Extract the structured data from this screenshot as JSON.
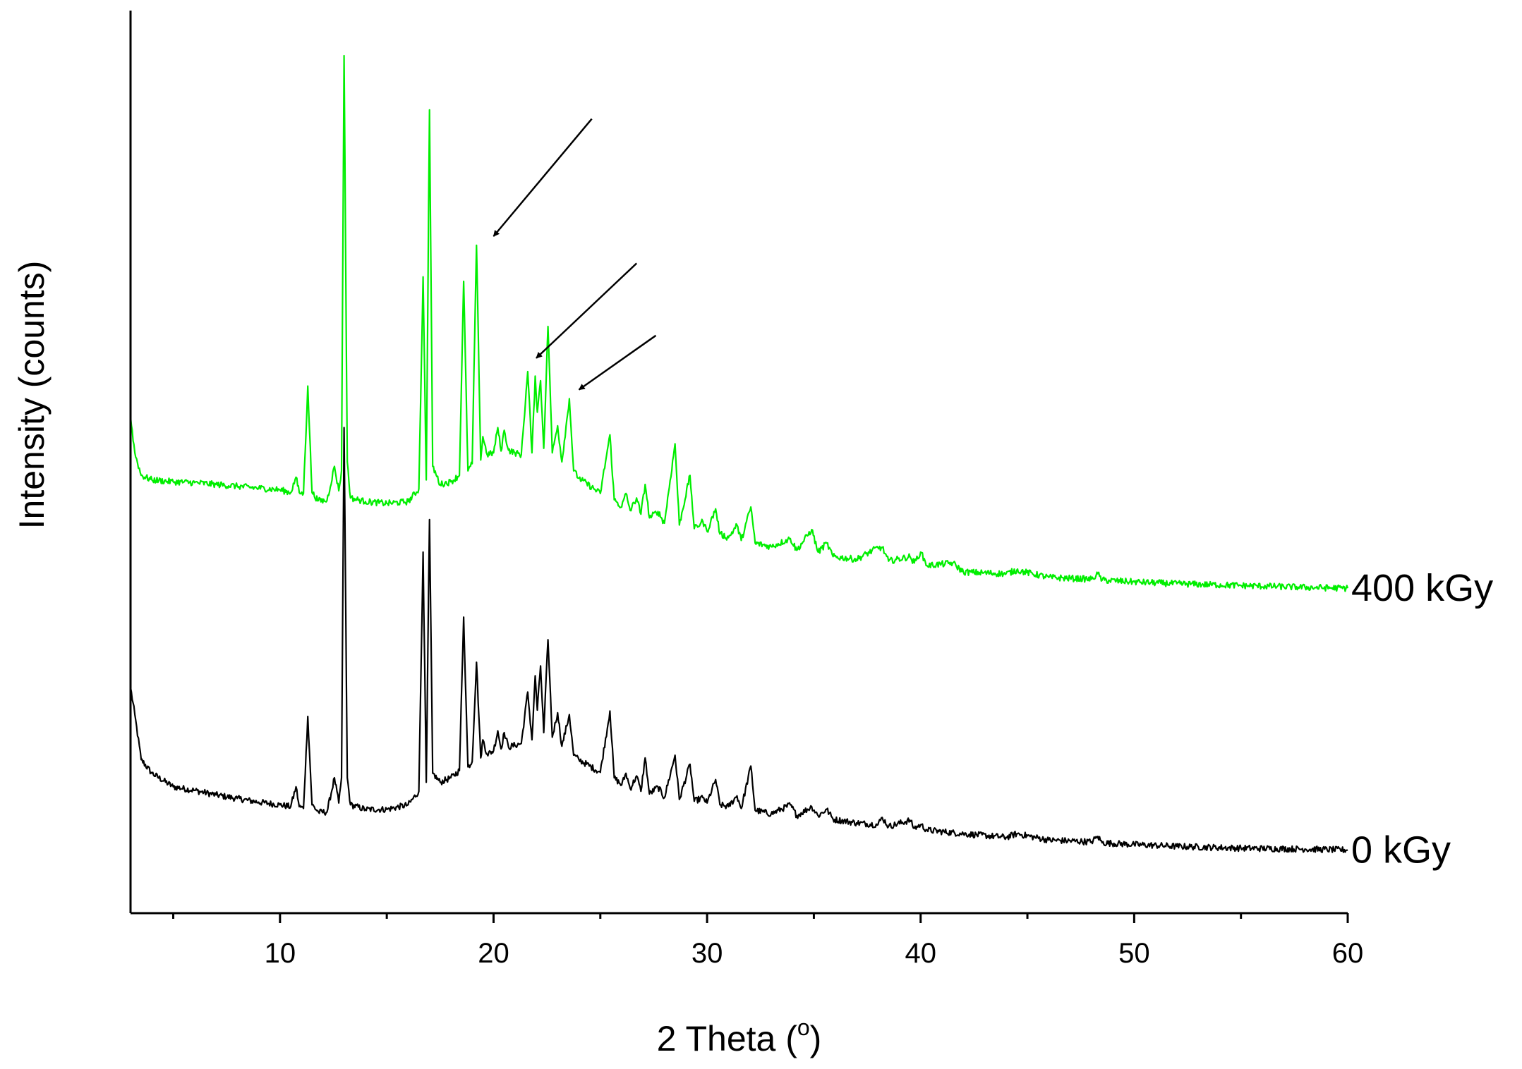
{
  "chart_data": {
    "type": "line",
    "xlabel": "2 Theta (",
    "xlabel_superscript": "o",
    "xlabel_suffix": ")",
    "ylabel": "Intensity (counts)",
    "xlim": [
      3,
      60
    ],
    "ylim": [
      0,
      100
    ],
    "x_major_ticks": [
      10,
      20,
      30,
      40,
      50,
      60
    ],
    "x_minor_ticks": [
      5,
      15,
      25,
      35,
      45,
      55
    ],
    "y_ticks_shown": false,
    "grid": false,
    "legend": "none",
    "series": [
      {
        "name": "0 kGy",
        "color": "#000000",
        "points": [
          [
            3.0,
            25.0
          ],
          [
            3.2,
            22.0
          ],
          [
            3.5,
            17.0
          ],
          [
            4,
            15.5
          ],
          [
            5,
            14.0
          ],
          [
            6,
            13.6
          ],
          [
            7,
            13.1
          ],
          [
            8,
            12.7
          ],
          [
            9,
            12.3
          ],
          [
            10,
            12.0
          ],
          [
            10.5,
            11.8
          ],
          [
            10.75,
            14.0
          ],
          [
            10.9,
            11.8
          ],
          [
            11.1,
            11.6
          ],
          [
            11.3,
            21.8
          ],
          [
            11.5,
            12.0
          ],
          [
            11.8,
            11.2
          ],
          [
            12.2,
            11.2
          ],
          [
            12.55,
            15.0
          ],
          [
            12.75,
            12.2
          ],
          [
            12.88,
            15.0
          ],
          [
            13.0,
            53.8
          ],
          [
            13.15,
            15.0
          ],
          [
            13.3,
            12.0
          ],
          [
            14,
            11.5
          ],
          [
            15,
            11.5
          ],
          [
            16,
            12.0
          ],
          [
            16.5,
            13.5
          ],
          [
            16.7,
            40.0
          ],
          [
            16.85,
            14.5
          ],
          [
            17.0,
            43.6
          ],
          [
            17.15,
            15.5
          ],
          [
            17.5,
            14.5
          ],
          [
            18,
            15.0
          ],
          [
            18.4,
            15.8
          ],
          [
            18.6,
            32.8
          ],
          [
            18.8,
            16.2
          ],
          [
            19.0,
            16.8
          ],
          [
            19.2,
            27.8
          ],
          [
            19.4,
            17.2
          ],
          [
            19.5,
            19.2
          ],
          [
            19.7,
            17.6
          ],
          [
            20.0,
            18.0
          ],
          [
            20.2,
            20.2
          ],
          [
            20.35,
            18.2
          ],
          [
            20.5,
            20.0
          ],
          [
            20.7,
            18.4
          ],
          [
            21.0,
            18.6
          ],
          [
            21.3,
            18.8
          ],
          [
            21.6,
            24.5
          ],
          [
            21.8,
            19.2
          ],
          [
            21.95,
            26.3
          ],
          [
            22.05,
            22.5
          ],
          [
            22.2,
            27.4
          ],
          [
            22.35,
            20.0
          ],
          [
            22.55,
            30.3
          ],
          [
            22.75,
            19.5
          ],
          [
            23.0,
            22.2
          ],
          [
            23.2,
            18.5
          ],
          [
            23.55,
            22.0
          ],
          [
            23.75,
            17.5
          ],
          [
            24.0,
            17.0
          ],
          [
            25.0,
            15.6
          ],
          [
            25.45,
            22.4
          ],
          [
            25.65,
            15.0
          ],
          [
            26.0,
            14.2
          ],
          [
            26.2,
            15.5
          ],
          [
            26.4,
            13.8
          ],
          [
            26.7,
            15.2
          ],
          [
            26.9,
            13.5
          ],
          [
            27.1,
            17.2
          ],
          [
            27.3,
            13.2
          ],
          [
            27.7,
            14.0
          ],
          [
            28.0,
            12.8
          ],
          [
            28.5,
            17.5
          ],
          [
            28.7,
            12.6
          ],
          [
            29.2,
            16.5
          ],
          [
            29.4,
            12.4
          ],
          [
            29.8,
            12.8
          ],
          [
            30.0,
            12.2
          ],
          [
            30.4,
            14.8
          ],
          [
            30.6,
            12.0
          ],
          [
            31.0,
            11.8
          ],
          [
            31.4,
            13.0
          ],
          [
            31.6,
            11.6
          ],
          [
            32.05,
            16.3
          ],
          [
            32.25,
            11.4
          ],
          [
            33.0,
            11.0
          ],
          [
            33.9,
            12.0
          ],
          [
            34.2,
            10.8
          ],
          [
            34.9,
            11.8
          ],
          [
            35.2,
            10.8
          ],
          [
            35.6,
            11.5
          ],
          [
            35.9,
            10.4
          ],
          [
            37.0,
            10.0
          ],
          [
            38.0,
            9.8
          ],
          [
            38.2,
            10.6
          ],
          [
            38.5,
            9.6
          ],
          [
            39.5,
            10.3
          ],
          [
            39.7,
            9.4
          ],
          [
            40.0,
            9.8
          ],
          [
            40.3,
            9.2
          ],
          [
            42.0,
            8.8
          ],
          [
            44.0,
            8.4
          ],
          [
            44.5,
            8.8
          ],
          [
            46.0,
            8.1
          ],
          [
            48.0,
            7.9
          ],
          [
            48.3,
            8.5
          ],
          [
            48.5,
            7.8
          ],
          [
            50.0,
            7.6
          ],
          [
            52.0,
            7.4
          ],
          [
            55.0,
            7.2
          ],
          [
            58.0,
            7.1
          ],
          [
            60.0,
            7.0
          ]
        ]
      },
      {
        "name": "400 kGy",
        "color": "#00ee00",
        "points": [
          [
            3.0,
            55.0
          ],
          [
            3.2,
            51.0
          ],
          [
            3.5,
            48.5
          ],
          [
            4,
            48.0
          ],
          [
            5,
            47.8
          ],
          [
            6,
            47.7
          ],
          [
            7,
            47.5
          ],
          [
            8,
            47.3
          ],
          [
            9,
            47.1
          ],
          [
            10,
            46.9
          ],
          [
            10.5,
            46.6
          ],
          [
            10.75,
            48.3
          ],
          [
            10.9,
            46.6
          ],
          [
            11.1,
            46.5
          ],
          [
            11.3,
            58.4
          ],
          [
            11.5,
            46.6
          ],
          [
            11.8,
            45.7
          ],
          [
            12.2,
            45.7
          ],
          [
            12.55,
            49.5
          ],
          [
            12.75,
            46.8
          ],
          [
            12.88,
            49.0
          ],
          [
            13.0,
            95.0
          ],
          [
            13.15,
            50.0
          ],
          [
            13.3,
            46.0
          ],
          [
            14,
            45.6
          ],
          [
            15,
            45.4
          ],
          [
            16,
            45.6
          ],
          [
            16.5,
            47.0
          ],
          [
            16.7,
            70.5
          ],
          [
            16.85,
            48.0
          ],
          [
            17.0,
            89.0
          ],
          [
            17.15,
            49.5
          ],
          [
            17.5,
            47.5
          ],
          [
            18,
            47.8
          ],
          [
            18.4,
            48.5
          ],
          [
            18.6,
            70.0
          ],
          [
            18.8,
            49.0
          ],
          [
            19.0,
            49.8
          ],
          [
            19.2,
            74.0
          ],
          [
            19.4,
            50.2
          ],
          [
            19.5,
            52.8
          ],
          [
            19.7,
            50.8
          ],
          [
            20.0,
            51.0
          ],
          [
            20.2,
            53.8
          ],
          [
            20.35,
            51.2
          ],
          [
            20.5,
            53.5
          ],
          [
            20.7,
            51.3
          ],
          [
            21.0,
            51.0
          ],
          [
            21.3,
            50.8
          ],
          [
            21.6,
            60.0
          ],
          [
            21.8,
            51.0
          ],
          [
            21.95,
            59.5
          ],
          [
            22.05,
            55.5
          ],
          [
            22.2,
            59.0
          ],
          [
            22.35,
            51.5
          ],
          [
            22.55,
            65.0
          ],
          [
            22.75,
            51.0
          ],
          [
            23.0,
            54.0
          ],
          [
            23.2,
            50.0
          ],
          [
            23.55,
            57.0
          ],
          [
            23.75,
            49.0
          ],
          [
            24.0,
            48.2
          ],
          [
            25.0,
            46.5
          ],
          [
            25.45,
            53.0
          ],
          [
            25.65,
            45.8
          ],
          [
            26.0,
            45.0
          ],
          [
            26.2,
            46.5
          ],
          [
            26.4,
            44.6
          ],
          [
            26.7,
            46.0
          ],
          [
            26.9,
            44.2
          ],
          [
            27.1,
            47.5
          ],
          [
            27.3,
            43.8
          ],
          [
            27.7,
            44.5
          ],
          [
            28.0,
            43.2
          ],
          [
            28.5,
            52.0
          ],
          [
            28.7,
            43.0
          ],
          [
            29.2,
            48.5
          ],
          [
            29.4,
            42.6
          ],
          [
            29.8,
            43.4
          ],
          [
            30.0,
            42.3
          ],
          [
            30.4,
            44.8
          ],
          [
            30.6,
            42.0
          ],
          [
            31.0,
            41.6
          ],
          [
            31.4,
            43.0
          ],
          [
            31.6,
            41.3
          ],
          [
            32.05,
            45.0
          ],
          [
            32.25,
            41.0
          ],
          [
            33.0,
            40.6
          ],
          [
            33.9,
            41.5
          ],
          [
            34.2,
            40.2
          ],
          [
            34.9,
            42.5
          ],
          [
            35.2,
            40.0
          ],
          [
            35.6,
            41.0
          ],
          [
            35.9,
            39.5
          ],
          [
            37.0,
            39.2
          ],
          [
            38.0,
            40.5
          ],
          [
            38.2,
            40.5
          ],
          [
            38.5,
            39.0
          ],
          [
            39.5,
            39.5
          ],
          [
            39.7,
            38.8
          ],
          [
            40.0,
            40.0
          ],
          [
            40.3,
            38.5
          ],
          [
            41.5,
            38.8
          ],
          [
            42.0,
            37.8
          ],
          [
            44.0,
            37.6
          ],
          [
            44.5,
            38.0
          ],
          [
            46.0,
            37.2
          ],
          [
            48.0,
            37.0
          ],
          [
            48.3,
            37.6
          ],
          [
            48.5,
            36.9
          ],
          [
            50.0,
            36.7
          ],
          [
            52.0,
            36.5
          ],
          [
            55.0,
            36.3
          ],
          [
            58.0,
            36.1
          ],
          [
            60.0,
            36.0
          ]
        ]
      }
    ],
    "annotations": [
      {
        "type": "arrow",
        "from": [
          24.6,
          88.0
        ],
        "to": [
          20.0,
          75.0
        ]
      },
      {
        "type": "arrow",
        "from": [
          26.7,
          72.0
        ],
        "to": [
          22.0,
          61.5
        ]
      },
      {
        "type": "arrow",
        "from": [
          27.6,
          64.0
        ],
        "to": [
          24.0,
          58.0
        ]
      }
    ],
    "noise_amplitude": 0.35
  }
}
